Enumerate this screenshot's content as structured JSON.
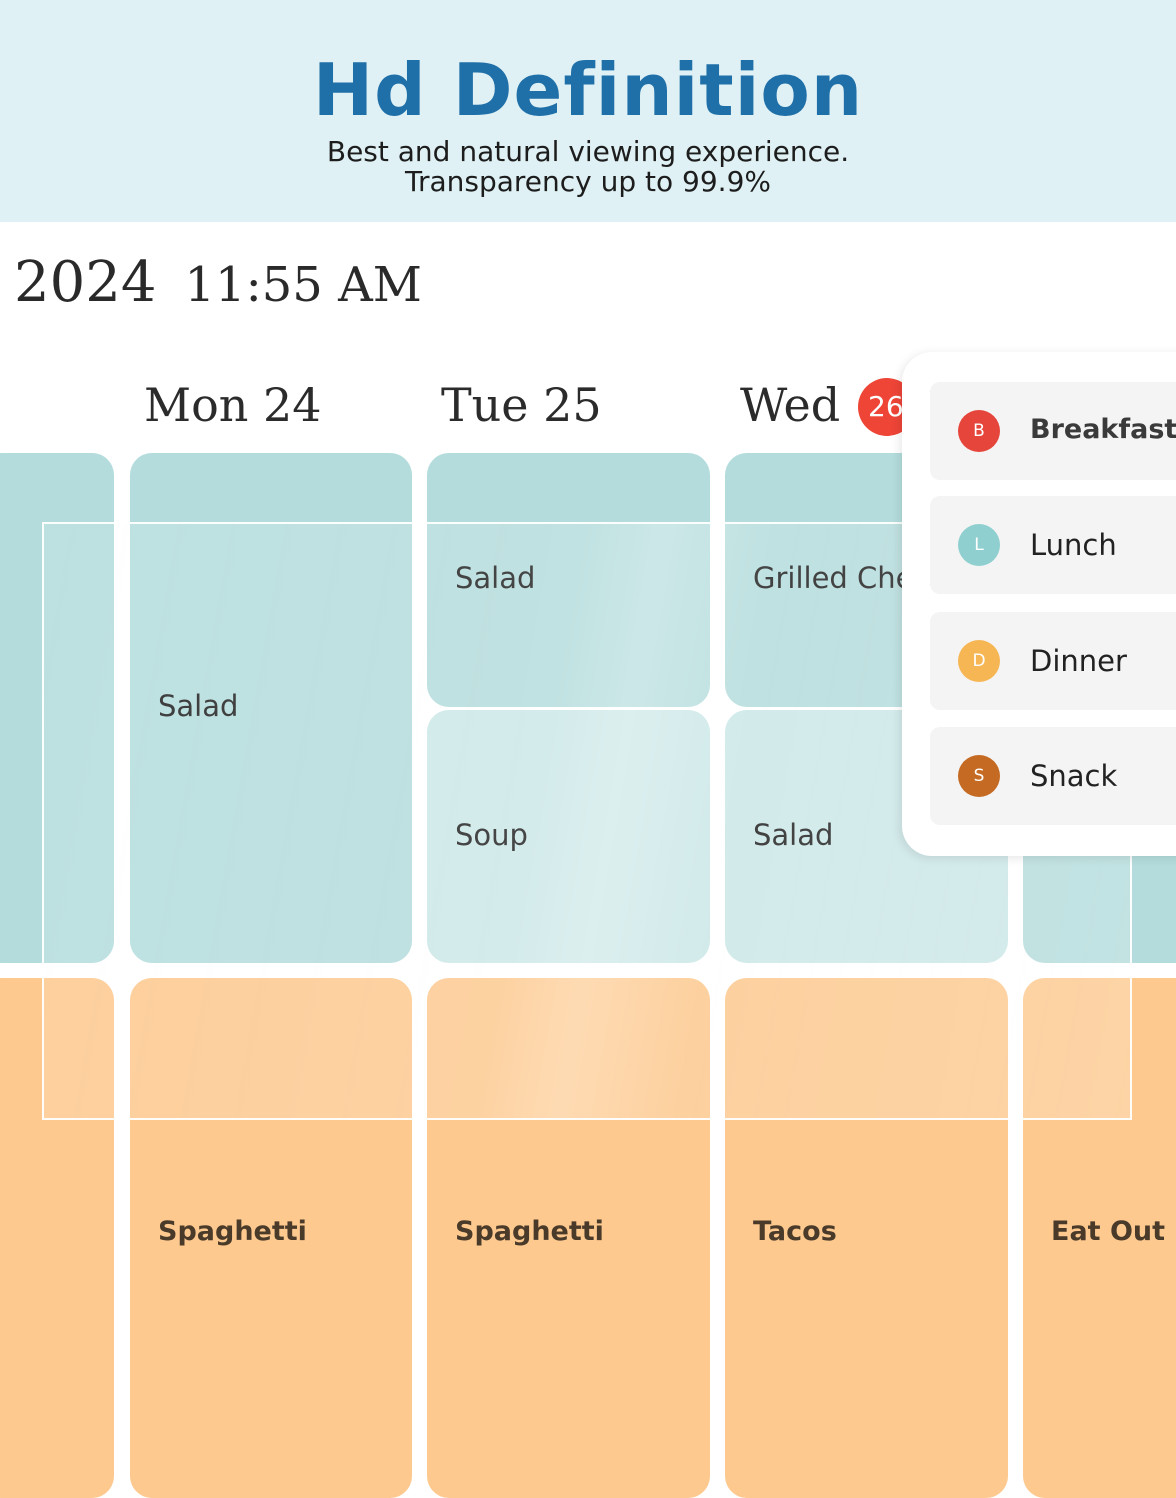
{
  "banner": {
    "title": "Hd Definition",
    "subtitle_line1": "Best and natural viewing experience.",
    "subtitle_line2": "Transparency up to 99.9%"
  },
  "header": {
    "year": "2024",
    "time": "11:55 AM"
  },
  "days": [
    {
      "label": "Mon 24"
    },
    {
      "label": "Tue 25"
    },
    {
      "label": "Wed"
    }
  ],
  "today_badge": "26",
  "meals": {
    "mon_lunch": "Salad",
    "tue_lunch_1": "Salad",
    "tue_lunch_2": "Soup",
    "wed_lunch_1": "Grilled Che",
    "wed_lunch_2": "Salad",
    "mon_dinner": "Spaghetti",
    "tue_dinner": "Spaghetti",
    "wed_dinner": "Tacos",
    "thu_dinner": "Eat Out"
  },
  "legend": [
    {
      "initial": "B",
      "label": "Breakfast",
      "color": "#e5453b"
    },
    {
      "initial": "L",
      "label": "Lunch",
      "color": "#8fcfcf"
    },
    {
      "initial": "D",
      "label": "Dinner",
      "color": "#f6b654"
    },
    {
      "initial": "S",
      "label": "Snack",
      "color": "#c56a22"
    }
  ],
  "colors": {
    "banner_bg": "#dff1f4",
    "title": "#1f6fa8",
    "lunch_cell": "#b4dcdc",
    "dinner_cell": "#fdc98f",
    "today_badge": "#ee4537"
  }
}
